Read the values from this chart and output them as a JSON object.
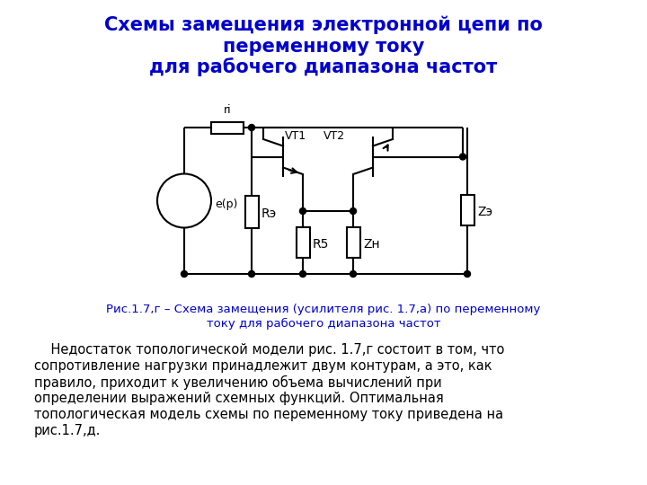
{
  "title_line1": "Схемы замещения электронной цепи по",
  "title_line2": "переменному току",
  "title_line3": "для рабочего диапазона частот",
  "title_color": "#0000CC",
  "title_fontsize": 15,
  "caption_line1": "Рис.1.7,г – Схема замещения (усилителя рис. 1.7,а) по переменному",
  "caption_line2": "току для рабочего диапазона частот",
  "caption_color": "#0000CC",
  "caption_fontsize": 9.5,
  "body_line1": "    Недостаток топологической модели рис. 1.7,г состоит в том, что",
  "body_line2": "сопротивление нагрузки принадлежит двум контурам, а это, как",
  "body_line3": "правило, приходит к увеличению объема вычислений при",
  "body_line4": "определении выражений схемных функций. Оптимальная",
  "body_line5": "топологическая модель схемы по переменному току приведена на",
  "body_line6": "рис.1.7,д.",
  "body_fontsize": 10.5,
  "body_color": "#000000",
  "bg_color": "#FFFFFF",
  "line_color": "#000000",
  "lw": 1.5
}
